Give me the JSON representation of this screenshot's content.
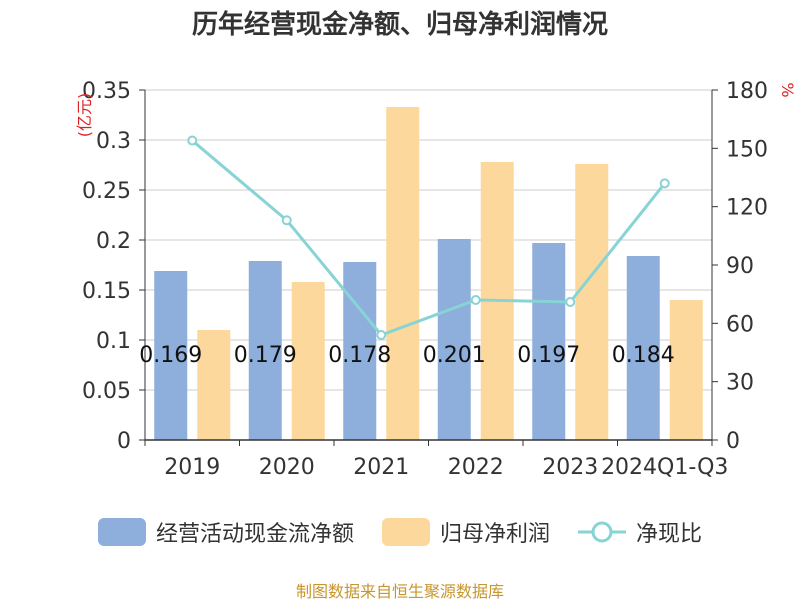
{
  "chart_data": {
    "type": "bar",
    "title": "历年经营现金净额、归母净利润情况",
    "categories": [
      "2019",
      "2020",
      "2021",
      "2022",
      "2023",
      "2024Q1-Q3"
    ],
    "series": [
      {
        "name": "经营活动现金流净额",
        "type": "bar",
        "axis": "left",
        "color": "#8eaedb",
        "values": [
          0.169,
          0.179,
          0.178,
          0.201,
          0.197,
          0.184
        ],
        "labels": [
          "0.169",
          "0.179",
          "0.178",
          "0.201",
          "0.197",
          "0.184"
        ]
      },
      {
        "name": "归母净利润",
        "type": "bar",
        "axis": "left",
        "color": "#fdd89c",
        "values": [
          0.11,
          0.158,
          0.333,
          0.278,
          0.276,
          0.14
        ]
      },
      {
        "name": "净现比",
        "type": "line",
        "axis": "right",
        "color": "#88d3d6",
        "values": [
          154,
          113,
          54,
          72,
          71,
          132
        ]
      }
    ],
    "ylabel_left": "(亿元)",
    "ylabel_right": "%",
    "ylim_left": [
      0,
      0.35
    ],
    "ylim_right": [
      0,
      180
    ],
    "yticks_left": [
      "0",
      "0.05",
      "0.1",
      "0.15",
      "0.2",
      "0.25",
      "0.3",
      "0.35"
    ],
    "yticks_right": [
      "0",
      "30",
      "60",
      "90",
      "120",
      "150",
      "180"
    ],
    "grid": true,
    "legend": "bottom"
  },
  "source_note": "制图数据来自恒生聚源数据库"
}
